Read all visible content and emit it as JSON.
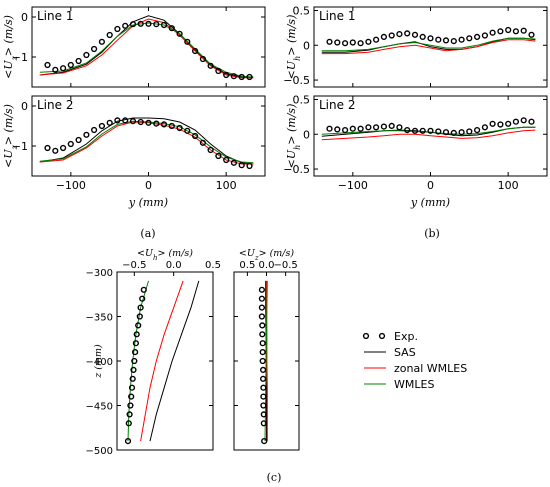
{
  "legend": [
    {
      "label": "Exp.",
      "kind": "marker",
      "color": "#000000"
    },
    {
      "label": "SAS",
      "kind": "line",
      "color": "#000000"
    },
    {
      "label": "zonal WMLES",
      "kind": "line",
      "color": "#ff0000"
    },
    {
      "label": "WMLES",
      "kind": "line",
      "color": "#008000"
    }
  ],
  "chart_data": [
    {
      "panel": "(a)",
      "type": "line",
      "subplot_label": "Line 1",
      "xlabel": "",
      "ylabel": "<U_z> (m/s)",
      "xlim": [
        -150,
        150
      ],
      "ylim": [
        -1.75,
        0.25
      ],
      "xticks": [
        -100,
        0,
        100
      ],
      "yticks": [
        0,
        -1
      ],
      "exp": {
        "x": [
          -130,
          -120,
          -110,
          -100,
          -90,
          -80,
          -70,
          -60,
          -50,
          -40,
          -30,
          -20,
          -10,
          0,
          10,
          20,
          30,
          40,
          50,
          60,
          70,
          80,
          90,
          100,
          110,
          120,
          130
        ],
        "y": [
          -1.2,
          -1.32,
          -1.28,
          -1.2,
          -1.1,
          -0.95,
          -0.8,
          -0.62,
          -0.45,
          -0.3,
          -0.22,
          -0.18,
          -0.17,
          -0.17,
          -0.18,
          -0.2,
          -0.28,
          -0.42,
          -0.62,
          -0.85,
          -1.05,
          -1.22,
          -1.35,
          -1.45,
          -1.48,
          -1.5,
          -1.5
        ]
      },
      "series": [
        {
          "name": "SAS",
          "x": [
            -140,
            -110,
            -80,
            -60,
            -40,
            -20,
            0,
            20,
            40,
            60,
            80,
            100,
            120,
            135
          ],
          "y": [
            -1.45,
            -1.38,
            -1.18,
            -0.88,
            -0.48,
            -0.12,
            0.03,
            -0.08,
            -0.42,
            -0.82,
            -1.2,
            -1.42,
            -1.5,
            -1.52
          ]
        },
        {
          "name": "zonal WMLES",
          "x": [
            -140,
            -110,
            -80,
            -60,
            -40,
            -20,
            0,
            20,
            40,
            60,
            80,
            100,
            120,
            135
          ],
          "y": [
            -1.45,
            -1.4,
            -1.22,
            -0.95,
            -0.58,
            -0.22,
            -0.05,
            -0.14,
            -0.45,
            -0.85,
            -1.22,
            -1.45,
            -1.52,
            -1.52
          ]
        },
        {
          "name": "WMLES",
          "x": [
            -140,
            -110,
            -80,
            -60,
            -40,
            -20,
            0,
            20,
            40,
            60,
            80,
            100,
            120,
            135
          ],
          "y": [
            -1.38,
            -1.35,
            -1.15,
            -0.85,
            -0.48,
            -0.2,
            -0.15,
            -0.2,
            -0.42,
            -0.8,
            -1.18,
            -1.38,
            -1.48,
            -1.5
          ]
        }
      ]
    },
    {
      "panel": "(b)",
      "type": "line",
      "subplot_label": "Line 1",
      "xlabel": "",
      "ylabel": "<U_h> (m/s)",
      "xlim": [
        -150,
        150
      ],
      "ylim": [
        -0.6,
        0.55
      ],
      "xticks": [
        -100,
        0,
        100
      ],
      "yticks": [
        0.5,
        0.0,
        -0.5
      ],
      "exp": {
        "x": [
          -130,
          -120,
          -110,
          -100,
          -90,
          -80,
          -70,
          -60,
          -50,
          -40,
          -30,
          -20,
          -10,
          0,
          10,
          20,
          30,
          40,
          50,
          60,
          70,
          80,
          90,
          100,
          110,
          120,
          130
        ],
        "y": [
          0.05,
          0.04,
          0.03,
          0.04,
          0.03,
          0.05,
          0.08,
          0.12,
          0.14,
          0.16,
          0.17,
          0.15,
          0.12,
          0.1,
          0.08,
          0.07,
          0.06,
          0.08,
          0.1,
          0.12,
          0.14,
          0.18,
          0.2,
          0.22,
          0.2,
          0.21,
          0.15
        ]
      },
      "series": [
        {
          "name": "SAS",
          "x": [
            -140,
            -110,
            -80,
            -60,
            -40,
            -20,
            0,
            20,
            40,
            60,
            80,
            100,
            120,
            135
          ],
          "y": [
            -0.1,
            -0.1,
            -0.07,
            -0.02,
            0.02,
            0.05,
            -0.02,
            -0.06,
            -0.06,
            -0.02,
            0.05,
            0.1,
            0.1,
            0.08
          ]
        },
        {
          "name": "zonal WMLES",
          "x": [
            -140,
            -110,
            -80,
            -60,
            -40,
            -20,
            0,
            20,
            40,
            60,
            80,
            100,
            120,
            135
          ],
          "y": [
            -0.12,
            -0.12,
            -0.1,
            -0.06,
            -0.02,
            0.0,
            -0.04,
            -0.08,
            -0.06,
            -0.02,
            0.04,
            0.08,
            0.08,
            0.06
          ]
        },
        {
          "name": "WMLES",
          "x": [
            -140,
            -110,
            -80,
            -60,
            -40,
            -20,
            0,
            20,
            40,
            60,
            80,
            100,
            120,
            135
          ],
          "y": [
            -0.08,
            -0.08,
            -0.06,
            -0.02,
            0.02,
            0.04,
            0.0,
            -0.04,
            -0.04,
            0.0,
            0.06,
            0.1,
            0.1,
            0.09
          ]
        }
      ]
    },
    {
      "panel": "(a)",
      "type": "line",
      "subplot_label": "Line 2",
      "xlabel": "y (mm)",
      "ylabel": "<U_z> (m/s)",
      "xlim": [
        -150,
        150
      ],
      "ylim": [
        -1.75,
        0.25
      ],
      "xticks": [
        -100,
        0,
        100
      ],
      "yticks": [
        0,
        -1
      ],
      "exp": {
        "x": [
          -130,
          -120,
          -110,
          -100,
          -90,
          -80,
          -70,
          -60,
          -50,
          -40,
          -30,
          -20,
          -10,
          0,
          10,
          20,
          30,
          40,
          50,
          60,
          70,
          80,
          90,
          100,
          110,
          120,
          130
        ],
        "y": [
          -1.05,
          -1.12,
          -1.05,
          -0.95,
          -0.85,
          -0.72,
          -0.6,
          -0.5,
          -0.42,
          -0.36,
          -0.36,
          -0.38,
          -0.4,
          -0.42,
          -0.44,
          -0.46,
          -0.5,
          -0.55,
          -0.62,
          -0.75,
          -0.92,
          -1.1,
          -1.25,
          -1.35,
          -1.42,
          -1.48,
          -1.5
        ]
      },
      "series": [
        {
          "name": "SAS",
          "x": [
            -140,
            -110,
            -80,
            -60,
            -40,
            -20,
            0,
            20,
            40,
            60,
            80,
            100,
            120,
            135
          ],
          "y": [
            -1.4,
            -1.3,
            -0.95,
            -0.62,
            -0.38,
            -0.3,
            -0.3,
            -0.32,
            -0.4,
            -0.6,
            -0.95,
            -1.25,
            -1.42,
            -1.45
          ]
        },
        {
          "name": "zonal WMLES",
          "x": [
            -140,
            -110,
            -80,
            -60,
            -40,
            -20,
            0,
            20,
            40,
            60,
            80,
            100,
            120,
            135
          ],
          "y": [
            -1.4,
            -1.35,
            -1.05,
            -0.75,
            -0.5,
            -0.4,
            -0.42,
            -0.48,
            -0.58,
            -0.78,
            -1.1,
            -1.35,
            -1.45,
            -1.45
          ]
        },
        {
          "name": "WMLES",
          "x": [
            -140,
            -110,
            -80,
            -60,
            -40,
            -20,
            0,
            20,
            40,
            60,
            80,
            100,
            120,
            135
          ],
          "y": [
            -1.38,
            -1.32,
            -1.02,
            -0.7,
            -0.46,
            -0.38,
            -0.4,
            -0.44,
            -0.52,
            -0.72,
            -1.02,
            -1.28,
            -1.4,
            -1.42
          ]
        }
      ]
    },
    {
      "panel": "(b)",
      "type": "line",
      "subplot_label": "Line 2",
      "xlabel": "y (mm)",
      "ylabel": "<U_h> (m/s)",
      "xlim": [
        -150,
        150
      ],
      "ylim": [
        -0.6,
        0.55
      ],
      "xticks": [
        -100,
        0,
        100
      ],
      "yticks": [
        0.5,
        0.0,
        -0.5
      ],
      "exp": {
        "x": [
          -130,
          -120,
          -110,
          -100,
          -90,
          -80,
          -70,
          -60,
          -50,
          -40,
          -30,
          -20,
          -10,
          0,
          10,
          20,
          30,
          40,
          50,
          60,
          70,
          80,
          90,
          100,
          110,
          120,
          130
        ],
        "y": [
          0.08,
          0.07,
          0.06,
          0.08,
          0.08,
          0.1,
          0.1,
          0.11,
          0.12,
          0.1,
          0.06,
          0.05,
          0.05,
          0.05,
          0.04,
          0.03,
          0.02,
          0.03,
          0.04,
          0.06,
          0.1,
          0.15,
          0.14,
          0.15,
          0.18,
          0.2,
          0.18
        ]
      },
      "series": [
        {
          "name": "SAS",
          "x": [
            -140,
            -110,
            -80,
            -60,
            -40,
            -20,
            0,
            20,
            40,
            60,
            80,
            100,
            120,
            135
          ],
          "y": [
            -0.03,
            0.0,
            0.03,
            0.05,
            0.06,
            0.05,
            0.03,
            0.0,
            -0.02,
            -0.01,
            0.03,
            0.08,
            0.1,
            0.1
          ]
        },
        {
          "name": "zonal WMLES",
          "x": [
            -140,
            -110,
            -80,
            -60,
            -40,
            -20,
            0,
            20,
            40,
            60,
            80,
            100,
            120,
            135
          ],
          "y": [
            -0.08,
            -0.06,
            -0.04,
            -0.02,
            0.0,
            0.0,
            -0.02,
            -0.04,
            -0.06,
            -0.05,
            -0.02,
            0.02,
            0.05,
            0.06
          ]
        },
        {
          "name": "WMLES",
          "x": [
            -140,
            -110,
            -80,
            -60,
            -40,
            -20,
            0,
            20,
            40,
            60,
            80,
            100,
            120,
            135
          ],
          "y": [
            0.0,
            0.02,
            0.04,
            0.05,
            0.05,
            0.04,
            0.03,
            0.01,
            0.0,
            0.01,
            0.04,
            0.08,
            0.1,
            0.1
          ]
        }
      ]
    },
    {
      "panel": "(c)",
      "type": "line",
      "xlabel": "<U_h> (m/s)",
      "ylabel": "z (mm)",
      "xlim": [
        -0.72,
        0.5
      ],
      "ylim": [
        -500,
        -300
      ],
      "xticks": [
        -0.5,
        0.0,
        0.5
      ],
      "xticklabels": [
        "-0.5",
        "0.0",
        "0.5"
      ],
      "yticks": [
        -300,
        -350,
        -400,
        -450,
        -500
      ],
      "exp": {
        "x": [
          -0.38,
          -0.4,
          -0.42,
          -0.43,
          -0.45,
          -0.47,
          -0.48,
          -0.49,
          -0.5,
          -0.51,
          -0.52,
          -0.53,
          -0.54,
          -0.55,
          -0.56,
          -0.57,
          -0.58
        ],
        "y": [
          -320,
          -330,
          -340,
          -350,
          -360,
          -370,
          -380,
          -390,
          -400,
          -410,
          -420,
          -430,
          -440,
          -450,
          -460,
          -470,
          -490
        ]
      },
      "series": [
        {
          "name": "SAS",
          "x": [
            0.32,
            0.22,
            0.1,
            -0.02,
            -0.12,
            -0.22,
            -0.3
          ],
          "y": [
            -310,
            -340,
            -370,
            -400,
            -430,
            -460,
            -490
          ]
        },
        {
          "name": "zonal WMLES",
          "x": [
            0.12,
            0.0,
            -0.12,
            -0.22,
            -0.3,
            -0.36,
            -0.42
          ],
          "y": [
            -310,
            -340,
            -370,
            -400,
            -430,
            -460,
            -490
          ]
        },
        {
          "name": "WMLES",
          "x": [
            -0.32,
            -0.42,
            -0.48,
            -0.52,
            -0.55,
            -0.57,
            -0.58
          ],
          "y": [
            -310,
            -340,
            -370,
            -400,
            -430,
            -460,
            -490
          ]
        }
      ]
    },
    {
      "panel": "(c)",
      "type": "line",
      "xlabel": "<U_z> (m/s)",
      "ylabel": "",
      "xlim": [
        0.85,
        -0.85
      ],
      "ylim": [
        -500,
        -300
      ],
      "xticks": [
        0.5,
        0.0,
        -0.5
      ],
      "xticklabels": [
        "0.5",
        "0.0",
        "-0.5"
      ],
      "yticks": [
        -300,
        -350,
        -400,
        -450,
        -500
      ],
      "exp": {
        "x": [
          0.12,
          0.12,
          0.12,
          0.12,
          0.11,
          0.11,
          0.1,
          0.1,
          0.1,
          0.09,
          0.09,
          0.08,
          0.08,
          0.08,
          0.07,
          0.07,
          0.06
        ],
        "y": [
          -320,
          -330,
          -340,
          -350,
          -360,
          -370,
          -380,
          -390,
          -400,
          -410,
          -420,
          -430,
          -440,
          -450,
          -460,
          -470,
          -490
        ]
      },
      "series": [
        {
          "name": "SAS",
          "x": [
            0.02,
            0.02,
            0.01,
            0.01,
            0.0,
            0.0,
            0.0
          ],
          "y": [
            -310,
            -340,
            -370,
            -400,
            -430,
            -460,
            -490
          ]
        },
        {
          "name": "zonal WMLES",
          "x": [
            0.0,
            0.0,
            -0.01,
            -0.01,
            -0.02,
            -0.02,
            -0.02
          ],
          "y": [
            -310,
            -340,
            -370,
            -400,
            -430,
            -460,
            -490
          ]
        },
        {
          "name": "WMLES",
          "x": [
            -0.02,
            -0.01,
            0.0,
            0.01,
            0.02,
            0.03,
            0.04
          ],
          "y": [
            -310,
            -340,
            -370,
            -400,
            -430,
            -460,
            -490
          ]
        }
      ]
    }
  ],
  "captions": {
    "a": "(a)",
    "b": "(b)",
    "c": "(c)"
  }
}
